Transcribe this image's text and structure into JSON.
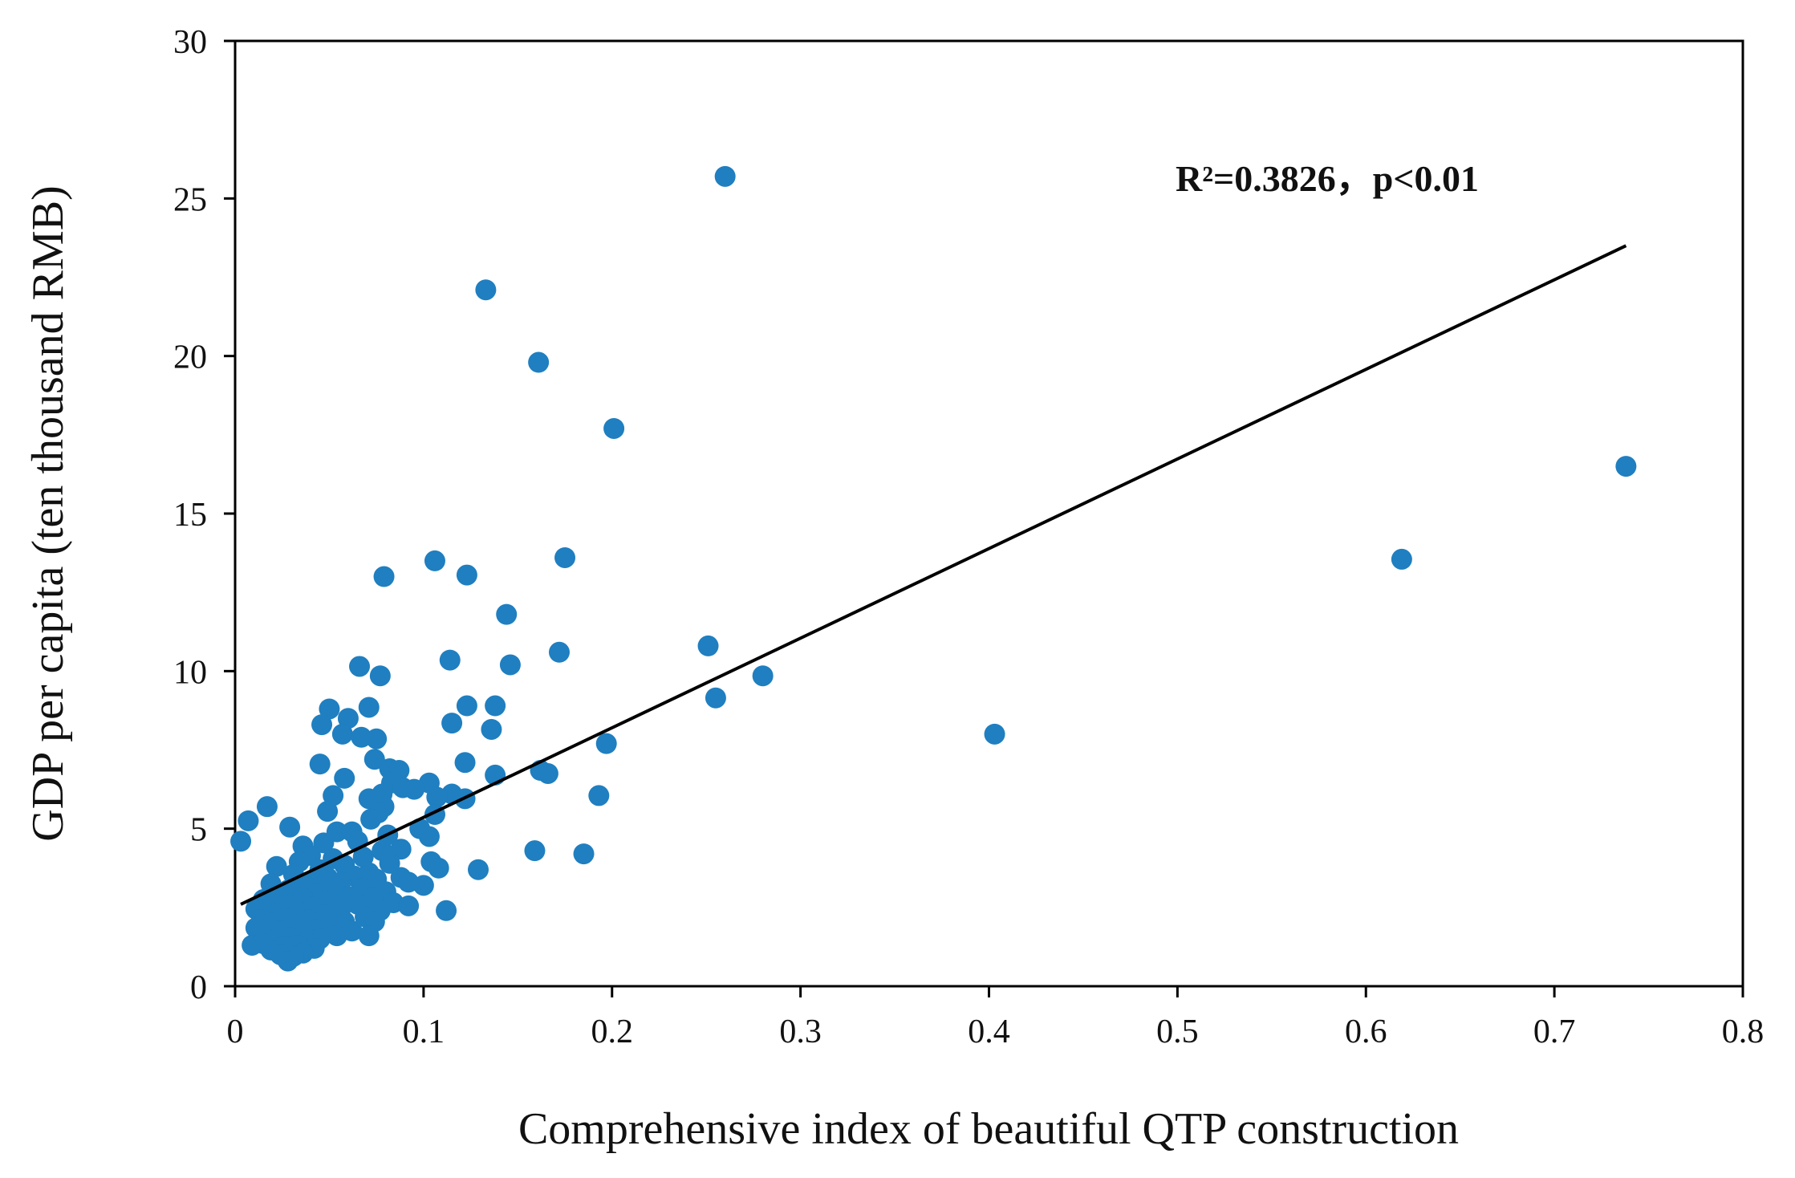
{
  "chart_data": {
    "type": "scatter",
    "xlabel": "Comprehensive  index of beautiful QTP construction",
    "ylabel": "GDP per capita (ten thousand RMB)",
    "annotation": "R²=0.3826，p<0.01",
    "xlim": [
      0,
      0.8
    ],
    "ylim": [
      0,
      30
    ],
    "x_ticks": [
      0,
      0.1,
      0.2,
      0.3,
      0.4,
      0.5,
      0.6,
      0.7,
      0.8
    ],
    "x_tick_labels": [
      "0",
      "0.1",
      "0.2",
      "0.3",
      "0.4",
      "0.5",
      "0.6",
      "0.7",
      "0.8"
    ],
    "y_ticks": [
      0,
      5,
      10,
      15,
      20,
      25,
      30
    ],
    "y_tick_labels": [
      "0",
      "5",
      "10",
      "15",
      "20",
      "25",
      "30"
    ],
    "point_color": "#1f7fc0",
    "line_color": "#000000",
    "trendline": {
      "x": [
        0.003,
        0.738
      ],
      "y": [
        2.6,
        23.5
      ]
    },
    "points": [
      [
        0.26,
        25.7
      ],
      [
        0.133,
        22.1
      ],
      [
        0.161,
        19.8
      ],
      [
        0.201,
        17.7
      ],
      [
        0.738,
        16.5
      ],
      [
        0.619,
        13.55
      ],
      [
        0.403,
        8.0
      ],
      [
        0.175,
        13.6
      ],
      [
        0.106,
        13.5
      ],
      [
        0.123,
        13.05
      ],
      [
        0.079,
        13.0
      ],
      [
        0.144,
        11.8
      ],
      [
        0.251,
        10.8
      ],
      [
        0.172,
        10.6
      ],
      [
        0.114,
        10.35
      ],
      [
        0.146,
        10.2
      ],
      [
        0.066,
        10.15
      ],
      [
        0.077,
        9.85
      ],
      [
        0.28,
        9.85
      ],
      [
        0.255,
        9.15
      ],
      [
        0.123,
        8.9
      ],
      [
        0.138,
        8.9
      ],
      [
        0.071,
        8.85
      ],
      [
        0.05,
        8.8
      ],
      [
        0.06,
        8.5
      ],
      [
        0.115,
        8.35
      ],
      [
        0.046,
        8.3
      ],
      [
        0.136,
        8.15
      ],
      [
        0.057,
        8.0
      ],
      [
        0.067,
        7.9
      ],
      [
        0.075,
        7.85
      ],
      [
        0.197,
        7.7
      ],
      [
        0.074,
        7.2
      ],
      [
        0.122,
        7.1
      ],
      [
        0.045,
        7.05
      ],
      [
        0.082,
        6.9
      ],
      [
        0.087,
        6.85
      ],
      [
        0.162,
        6.85
      ],
      [
        0.166,
        6.75
      ],
      [
        0.138,
        6.7
      ],
      [
        0.058,
        6.6
      ],
      [
        0.083,
        6.45
      ],
      [
        0.103,
        6.45
      ],
      [
        0.089,
        6.3
      ],
      [
        0.095,
        6.25
      ],
      [
        0.078,
        6.1
      ],
      [
        0.115,
        6.1
      ],
      [
        0.107,
        6.0
      ],
      [
        0.052,
        6.05
      ],
      [
        0.193,
        6.05
      ],
      [
        0.071,
        5.95
      ],
      [
        0.122,
        5.95
      ],
      [
        0.079,
        5.7
      ],
      [
        0.017,
        5.7
      ],
      [
        0.049,
        5.55
      ],
      [
        0.076,
        5.5
      ],
      [
        0.106,
        5.45
      ],
      [
        0.072,
        5.3
      ],
      [
        0.007,
        5.25
      ],
      [
        0.029,
        5.05
      ],
      [
        0.098,
        5.0
      ],
      [
        0.054,
        4.9
      ],
      [
        0.062,
        4.9
      ],
      [
        0.081,
        4.8
      ],
      [
        0.103,
        4.75
      ],
      [
        0.003,
        4.6
      ],
      [
        0.065,
        4.6
      ],
      [
        0.047,
        4.55
      ],
      [
        0.036,
        4.45
      ],
      [
        0.088,
        4.35
      ],
      [
        0.078,
        4.3
      ],
      [
        0.159,
        4.3
      ],
      [
        0.185,
        4.2
      ],
      [
        0.04,
        4.15
      ],
      [
        0.068,
        4.1
      ],
      [
        0.052,
        4.05
      ],
      [
        0.104,
        3.95
      ],
      [
        0.034,
        3.95
      ],
      [
        0.082,
        3.9
      ],
      [
        0.058,
        3.85
      ],
      [
        0.022,
        3.8
      ],
      [
        0.108,
        3.75
      ],
      [
        0.129,
        3.7
      ],
      [
        0.045,
        3.7
      ],
      [
        0.071,
        3.6
      ],
      [
        0.031,
        3.55
      ],
      [
        0.063,
        3.5
      ],
      [
        0.088,
        3.45
      ],
      [
        0.049,
        3.45
      ],
      [
        0.075,
        3.4
      ],
      [
        0.041,
        3.35
      ],
      [
        0.092,
        3.3
      ],
      [
        0.056,
        3.3
      ],
      [
        0.019,
        3.25
      ],
      [
        0.1,
        3.2
      ],
      [
        0.037,
        3.2
      ],
      [
        0.067,
        3.1
      ],
      [
        0.028,
        3.05
      ],
      [
        0.052,
        3.0
      ],
      [
        0.08,
        3.0
      ],
      [
        0.044,
        2.95
      ],
      [
        0.023,
        2.9
      ],
      [
        0.06,
        2.85
      ],
      [
        0.073,
        2.8
      ],
      [
        0.036,
        2.8
      ],
      [
        0.015,
        2.75
      ],
      [
        0.048,
        2.7
      ],
      [
        0.084,
        2.65
      ],
      [
        0.029,
        2.6
      ],
      [
        0.065,
        2.6
      ],
      [
        0.092,
        2.55
      ],
      [
        0.041,
        2.5
      ],
      [
        0.011,
        2.45
      ],
      [
        0.056,
        2.45
      ],
      [
        0.077,
        2.4
      ],
      [
        0.112,
        2.4
      ],
      [
        0.034,
        2.35
      ],
      [
        0.021,
        2.3
      ],
      [
        0.047,
        2.25
      ],
      [
        0.069,
        2.2
      ],
      [
        0.026,
        2.15
      ],
      [
        0.014,
        2.1
      ],
      [
        0.039,
        2.1
      ],
      [
        0.058,
        2.05
      ],
      [
        0.074,
        2.05
      ],
      [
        0.019,
        2.0
      ],
      [
        0.032,
        1.95
      ],
      [
        0.051,
        1.9
      ],
      [
        0.011,
        1.85
      ],
      [
        0.043,
        1.8
      ],
      [
        0.024,
        1.75
      ],
      [
        0.062,
        1.75
      ],
      [
        0.036,
        1.7
      ],
      [
        0.017,
        1.65
      ],
      [
        0.054,
        1.6
      ],
      [
        0.071,
        1.6
      ],
      [
        0.029,
        1.55
      ],
      [
        0.045,
        1.5
      ],
      [
        0.021,
        1.45
      ],
      [
        0.038,
        1.4
      ],
      [
        0.015,
        1.35
      ],
      [
        0.033,
        1.3
      ],
      [
        0.009,
        1.3
      ],
      [
        0.026,
        1.25
      ],
      [
        0.042,
        1.2
      ],
      [
        0.019,
        1.15
      ],
      [
        0.036,
        1.05
      ],
      [
        0.024,
        1.0
      ],
      [
        0.031,
        0.95
      ],
      [
        0.028,
        0.8
      ]
    ]
  }
}
